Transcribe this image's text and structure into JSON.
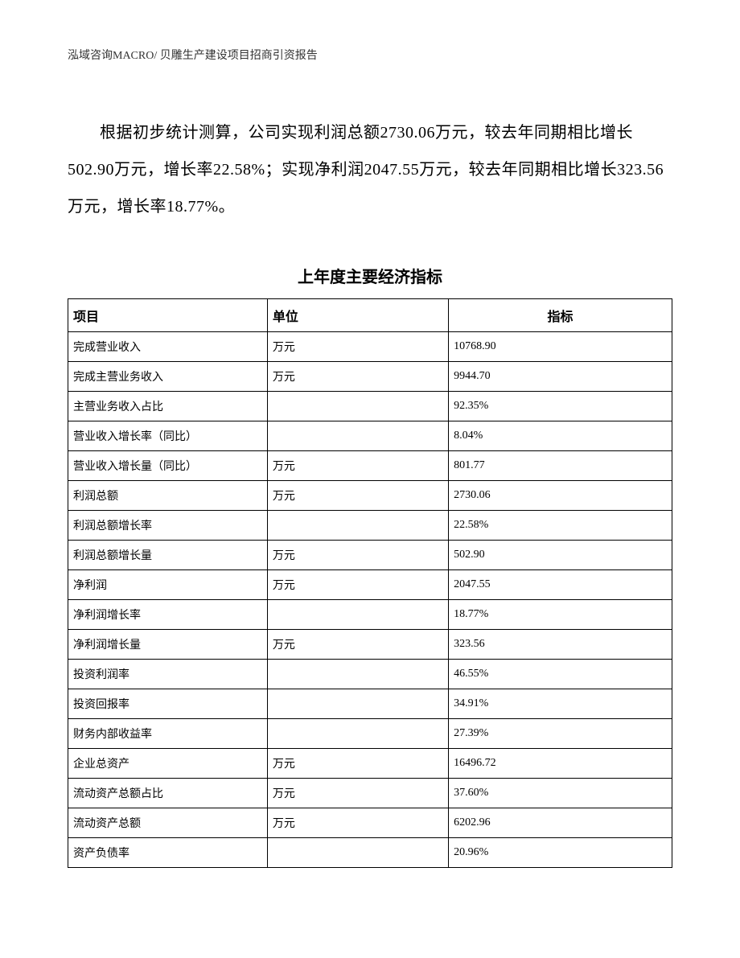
{
  "header": "泓域咨询MACRO/ 贝雕生产建设项目招商引资报告",
  "paragraph": "根据初步统计测算，公司实现利润总额2730.06万元，较去年同期相比增长502.90万元，增长率22.58%；实现净利润2047.55万元，较去年同期相比增长323.56万元，增长率18.77%。",
  "table": {
    "title": "上年度主要经济指标",
    "columns": [
      "项目",
      "单位",
      "指标"
    ],
    "rows": [
      [
        "完成营业收入",
        "万元",
        "10768.90"
      ],
      [
        "完成主营业务收入",
        "万元",
        "9944.70"
      ],
      [
        "主营业务收入占比",
        "",
        "92.35%"
      ],
      [
        "营业收入增长率（同比）",
        "",
        "8.04%"
      ],
      [
        "营业收入增长量（同比）",
        "万元",
        "801.77"
      ],
      [
        "利润总额",
        "万元",
        "2730.06"
      ],
      [
        "利润总额增长率",
        "",
        "22.58%"
      ],
      [
        "利润总额增长量",
        "万元",
        "502.90"
      ],
      [
        "净利润",
        "万元",
        "2047.55"
      ],
      [
        "净利润增长率",
        "",
        "18.77%"
      ],
      [
        "净利润增长量",
        "万元",
        "323.56"
      ],
      [
        "投资利润率",
        "",
        "46.55%"
      ],
      [
        "投资回报率",
        "",
        "34.91%"
      ],
      [
        "财务内部收益率",
        "",
        "27.39%"
      ],
      [
        "企业总资产",
        "万元",
        "16496.72"
      ],
      [
        "流动资产总额占比",
        "万元",
        "37.60%"
      ],
      [
        "流动资产总额",
        "万元",
        "6202.96"
      ],
      [
        "资产负债率",
        "",
        "20.96%"
      ]
    ]
  }
}
